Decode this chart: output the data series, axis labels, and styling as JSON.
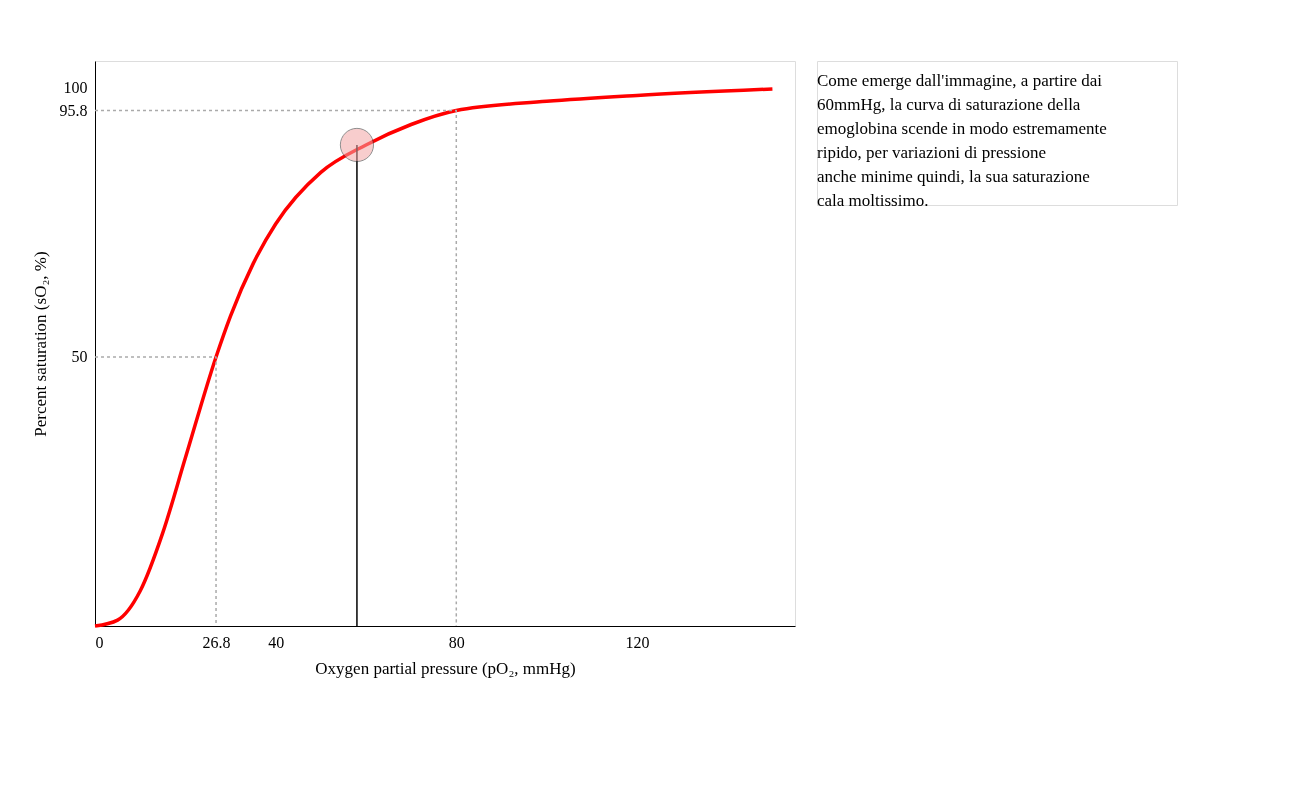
{
  "chart_data": {
    "type": "line",
    "xlabel": "Oxygen partial pressure (pO₂, mmHg)",
    "ylabel": "Percent saturation (sO₂, %)",
    "xlim": [
      0,
      155
    ],
    "ylim": [
      0,
      105
    ],
    "xticks": [
      0,
      26.8,
      40,
      80,
      120
    ],
    "yticks": [
      50,
      95.8,
      100
    ],
    "grid": false,
    "series": [
      {
        "type": "line",
        "color": "#ff0000",
        "x": [
          0,
          5,
          10,
          15,
          20,
          26.8,
          30,
          35,
          40,
          50,
          60,
          70,
          80,
          100,
          120,
          150
        ],
        "values": [
          0,
          1.1,
          6.5,
          17.3,
          31.2,
          50,
          57.6,
          67.3,
          74.7,
          84.3,
          89.4,
          93.2,
          95.8,
          97.5,
          98.6,
          99.8
        ]
      },
      {
        "type": "line",
        "color": "#aaaaaa",
        "line_style": "dashed",
        "x": [
          0,
          26.8,
          26.8
        ],
        "values": [
          50,
          50,
          0
        ]
      },
      {
        "type": "line",
        "color": "#aaaaaa",
        "line_style": "dashed",
        "x": [
          0,
          80,
          80
        ],
        "values": [
          95.8,
          95.8,
          0
        ]
      },
      {
        "type": "line",
        "color": "#000000",
        "x": [
          58,
          58
        ],
        "values": [
          0,
          89.4
        ]
      },
      {
        "type": "scatter",
        "color": "#f4a6a6",
        "marker": "circle",
        "x": [
          58
        ],
        "values": [
          89.4
        ]
      }
    ],
    "annotations": [
      "Come emerge dall'immagine, a partire dai 60mmHg, la curva di saturazione della emoglobina scende in modo estremamente ripido, per variazioni di pressione anche minime quindi, la sua saturazione cala moltissimo."
    ]
  }
}
